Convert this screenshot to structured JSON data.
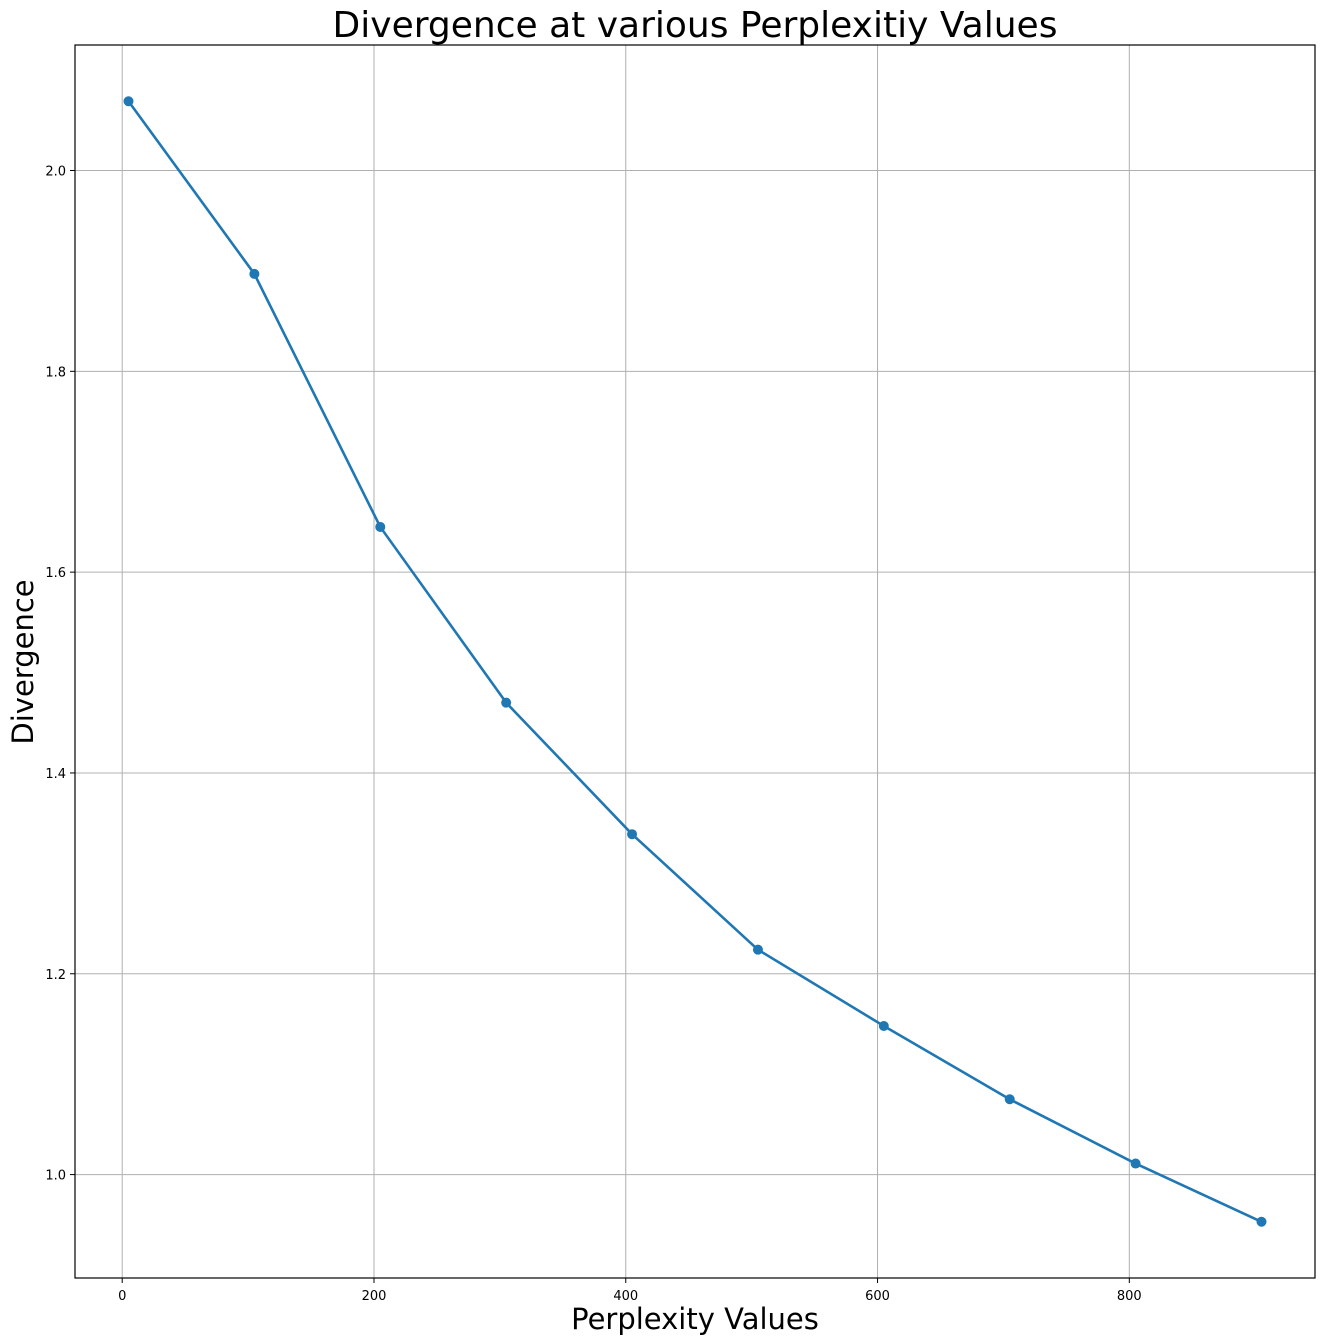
{
  "chart_data": {
    "type": "line",
    "title": "Divergence at various Perplexitiy Values",
    "xlabel": "Perplexity Values",
    "ylabel": "Divergence",
    "x": [
      5,
      105,
      205,
      305,
      405,
      505,
      605,
      705,
      805,
      905
    ],
    "series": [
      {
        "values": [
          2.069,
          1.897,
          1.645,
          1.47,
          1.339,
          1.224,
          1.148,
          1.075,
          1.011,
          0.953
        ],
        "color": "#1f77b4",
        "marker": "circle"
      }
    ],
    "xlim": [
      -37.5,
      947.5
    ],
    "ylim": [
      0.897,
      2.125
    ],
    "xticks": [
      0,
      200,
      400,
      600,
      800
    ],
    "xtick_labels": [
      "0",
      "200",
      "400",
      "600",
      "800"
    ],
    "yticks": [
      1.0,
      1.2,
      1.4,
      1.6,
      1.8,
      2.0
    ],
    "ytick_labels": [
      "1.0",
      "1.2",
      "1.4",
      "1.6",
      "1.8",
      "2.0"
    ],
    "grid": true,
    "legend": false
  }
}
